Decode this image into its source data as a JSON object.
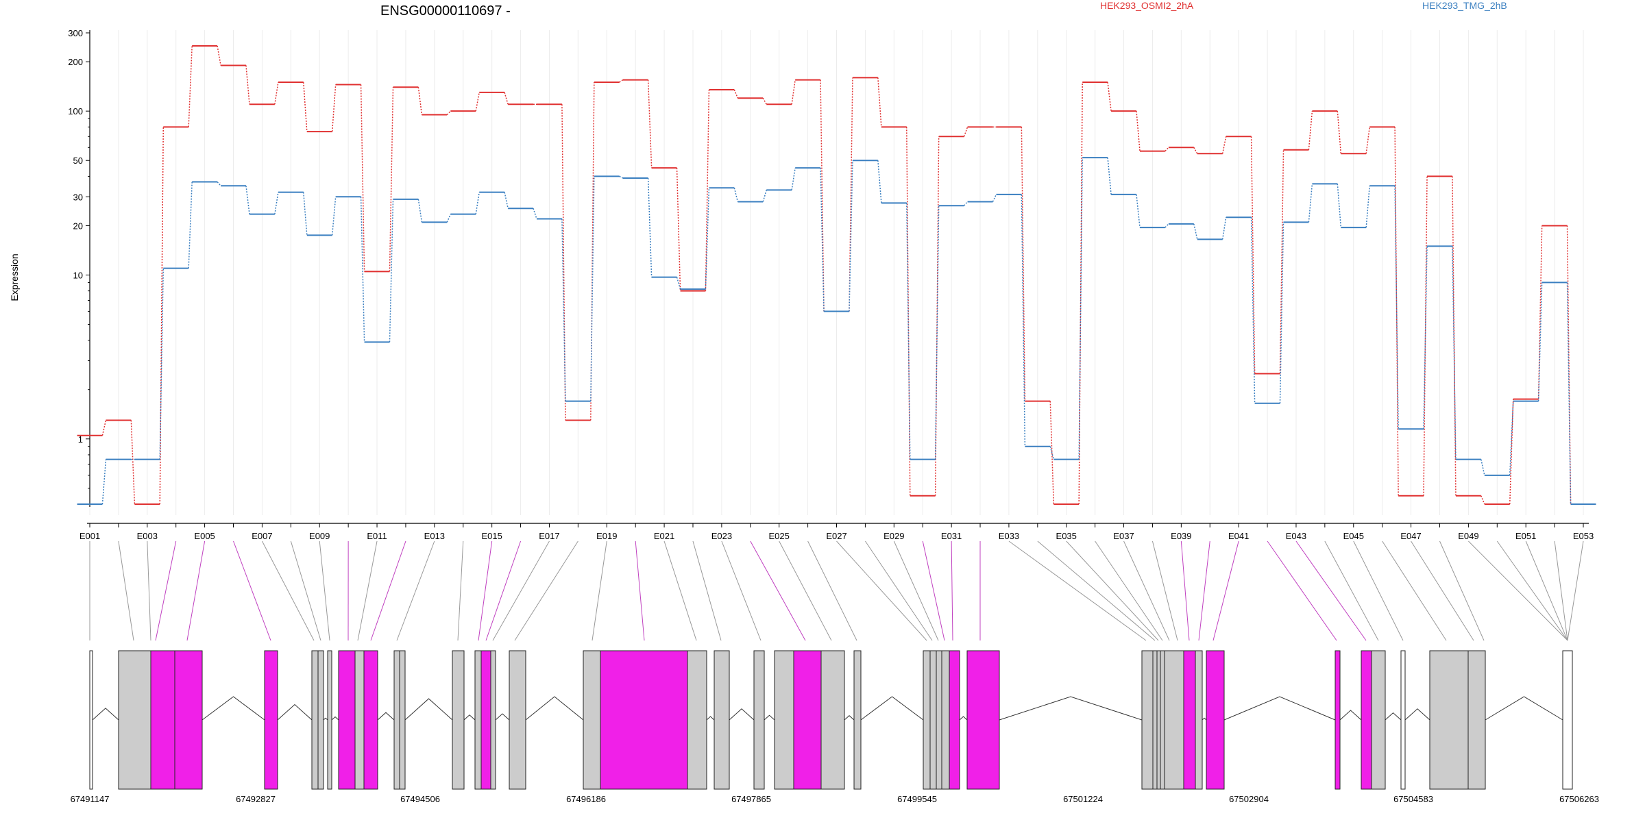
{
  "chart_data": {
    "type": "line",
    "title": "ENSG00000110697 -",
    "ylabel": "Expression",
    "yscale": "log",
    "ylim": [
      0.4,
      300
    ],
    "grid": "vertical",
    "legend_position": "top-right",
    "y_ticks": [
      {
        "value": 1,
        "label": "1"
      },
      {
        "value": 10,
        "label": "10"
      },
      {
        "value": 20,
        "label": "20"
      },
      {
        "value": 30,
        "label": "30"
      },
      {
        "value": 50,
        "label": "50"
      },
      {
        "value": 100,
        "label": "100"
      },
      {
        "value": 200,
        "label": "200"
      },
      {
        "value": 300,
        "label": "300"
      }
    ],
    "exons": [
      "E001",
      "E002",
      "E003",
      "E004",
      "E005",
      "E006",
      "E007",
      "E008",
      "E009",
      "E010",
      "E011",
      "E012",
      "E013",
      "E014",
      "E015",
      "E016",
      "E017",
      "E018",
      "E019",
      "E020",
      "E021",
      "E022",
      "E023",
      "E024",
      "E025",
      "E026",
      "E027",
      "E028",
      "E029",
      "E030",
      "E031",
      "E032",
      "E033",
      "E034",
      "E035",
      "E036",
      "E037",
      "E038",
      "E039",
      "E040",
      "E041",
      "E042",
      "E043",
      "E044",
      "E045",
      "E046",
      "E047",
      "E048",
      "E049",
      "E050",
      "E051",
      "E052",
      "E053"
    ],
    "exon_labels_shown": [
      "E001",
      "E003",
      "E005",
      "E007",
      "E009",
      "E011",
      "E013",
      "E015",
      "E017",
      "E019",
      "E021",
      "E023",
      "E025",
      "E027",
      "E029",
      "E031",
      "E033",
      "E035",
      "E037",
      "E039",
      "E041",
      "E043",
      "E045",
      "E047",
      "E049",
      "E051",
      "E053"
    ],
    "series": [
      {
        "name": "HEK293_OSMI2_2hA",
        "color": "#e03030",
        "values": [
          1.05,
          1.3,
          0.4,
          80,
          250,
          190,
          110,
          150,
          75,
          145,
          10.5,
          140,
          95,
          100,
          130,
          110,
          110,
          1.3,
          150,
          155,
          45,
          8,
          135,
          120,
          110,
          155,
          6,
          160,
          80,
          0.45,
          70,
          80,
          80,
          1.7,
          0.4,
          150,
          100,
          57,
          60,
          55,
          70,
          2.5,
          58,
          100,
          55,
          80,
          0.45,
          40,
          0.45,
          0.4,
          1.75,
          20,
          0.4
        ]
      },
      {
        "name": "HEK293_TMG_2hB",
        "color": "#3a7fc0",
        "values": [
          0.4,
          0.75,
          0.75,
          11,
          37,
          35,
          23.5,
          32,
          17.5,
          30,
          3.9,
          29,
          21,
          23.5,
          32,
          25.5,
          22,
          1.7,
          40,
          39,
          9.7,
          8.2,
          34,
          28,
          33,
          45,
          6,
          50,
          27.5,
          0.75,
          26.5,
          28,
          31,
          0.9,
          0.75,
          52,
          31,
          19.5,
          20.5,
          16.5,
          22.5,
          1.65,
          21,
          36,
          19.5,
          35,
          1.15,
          15,
          0.75,
          0.6,
          1.7,
          9,
          0.4
        ]
      }
    ]
  },
  "gene_model": {
    "coordinates": [
      "67491147",
      "67492827",
      "67494506",
      "67496186",
      "67497865",
      "67499545",
      "67501224",
      "67502904",
      "67504583",
      "67506263"
    ],
    "colors": {
      "counting_bin": "#cccccc",
      "significant_bin": "#f020e8",
      "utr": "#ffffff"
    }
  }
}
